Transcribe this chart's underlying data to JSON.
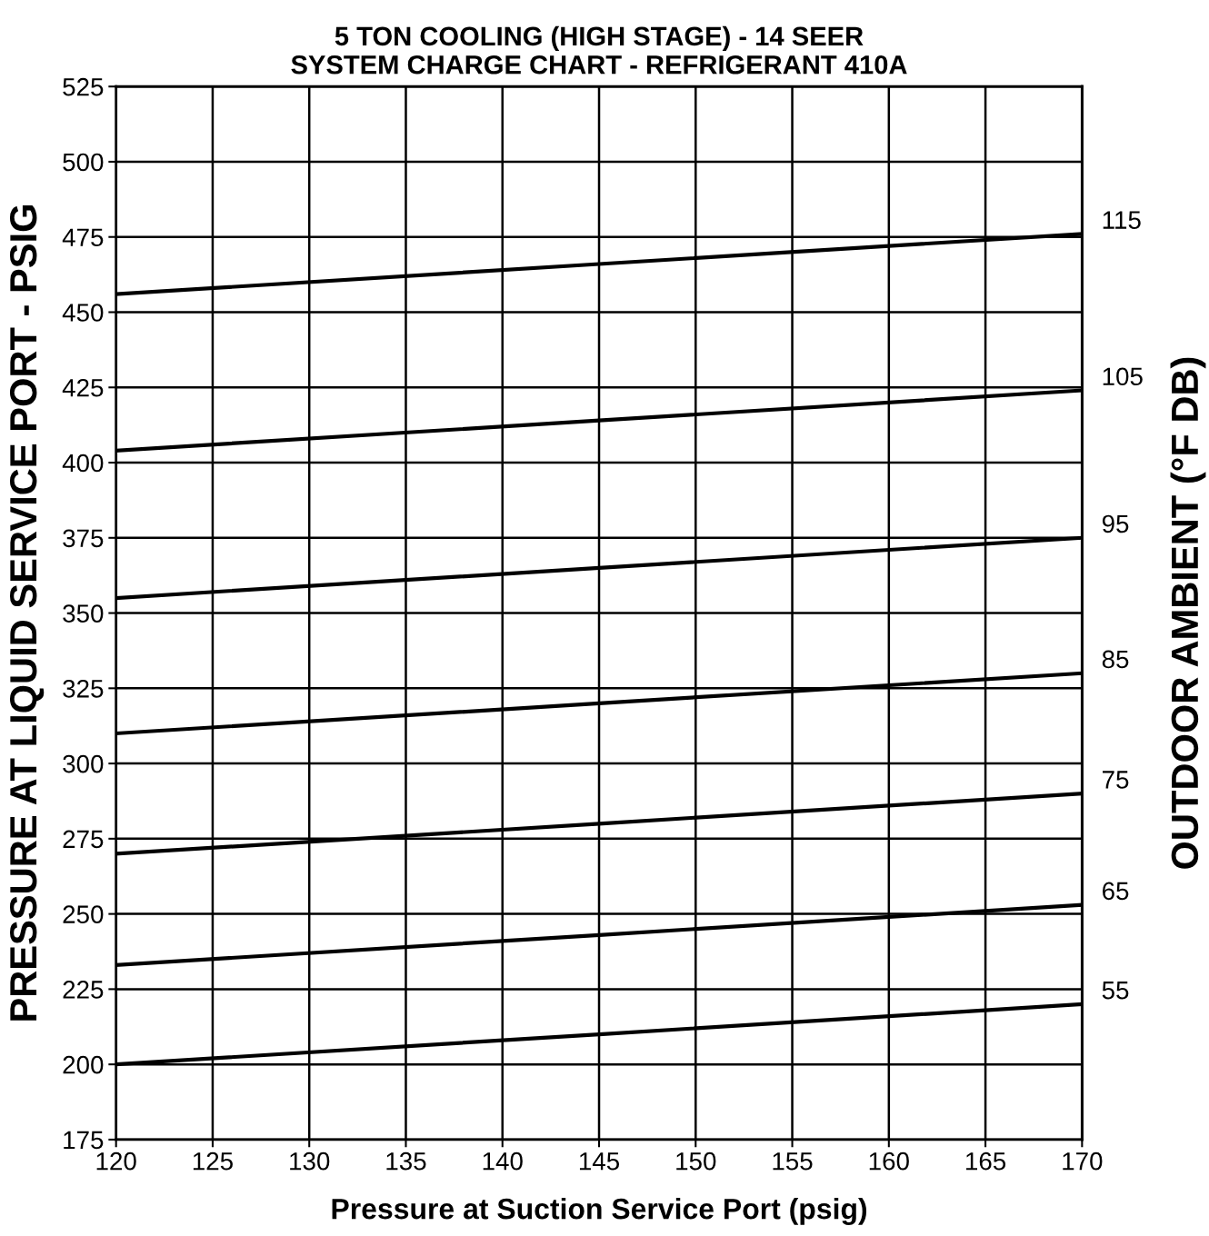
{
  "chart_data": {
    "type": "line",
    "title": "5 TON COOLING (HIGH STAGE) - 14 SEER\nSYSTEM CHARGE CHART - REFRIGERANT 410A",
    "xlabel": "Pressure at Suction Service Port (psig)",
    "ylabel": "PRESSURE AT LIQUID SERVICE PORT - PSIG",
    "y2label": "OUTDOOR AMBIENT (°F DB)",
    "x": [
      120,
      145,
      170
    ],
    "series": [
      {
        "name": "115",
        "color": "#000000",
        "values": [
          456,
          466,
          476
        ]
      },
      {
        "name": "105",
        "color": "#000000",
        "values": [
          404,
          414,
          424
        ]
      },
      {
        "name": "95",
        "color": "#000000",
        "values": [
          355,
          365,
          375
        ]
      },
      {
        "name": "85",
        "color": "#000000",
        "values": [
          310,
          320,
          330
        ]
      },
      {
        "name": "75",
        "color": "#000000",
        "values": [
          270,
          280,
          290
        ]
      },
      {
        "name": "65",
        "color": "#000000",
        "values": [
          233,
          243,
          253
        ]
      },
      {
        "name": "55",
        "color": "#000000",
        "values": [
          200,
          210,
          220
        ]
      }
    ],
    "xlim": [
      120,
      170
    ],
    "xticks": [
      120,
      125,
      130,
      135,
      140,
      145,
      150,
      155,
      160,
      165,
      170
    ],
    "ylim": [
      175,
      525
    ],
    "yticks": [
      175,
      200,
      225,
      250,
      275,
      300,
      325,
      350,
      375,
      400,
      425,
      450,
      475,
      500,
      525
    ],
    "grid": true,
    "marker": "none",
    "line_style": "solid",
    "legend": false
  }
}
